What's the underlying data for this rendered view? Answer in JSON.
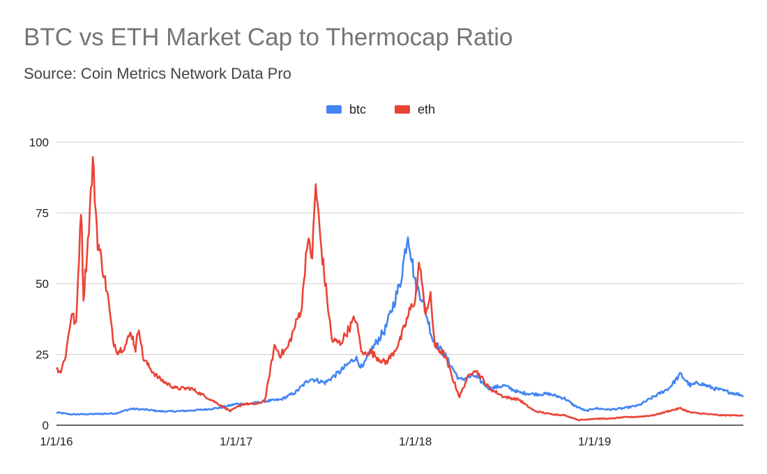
{
  "chart_data": {
    "type": "line",
    "title": "BTC vs ETH Market Cap to Thermocap Ratio",
    "subtitle": "Source: Coin Metrics Network Data Pro",
    "xlabel": "",
    "ylabel": "",
    "ylim": [
      0,
      100
    ],
    "y_ticks": [
      "0",
      "25",
      "50",
      "75",
      "100"
    ],
    "x_ticks": [
      {
        "date": "2016-01-01",
        "label": "1/1/16"
      },
      {
        "date": "2017-01-01",
        "label": "1/1/17"
      },
      {
        "date": "2018-01-01",
        "label": "1/1/18"
      },
      {
        "date": "2019-01-01",
        "label": "1/1/19"
      }
    ],
    "xlim": [
      "2016-01-01",
      "2019-10-31"
    ],
    "grid": true,
    "legend_position": "top-center",
    "series": [
      {
        "name": "btc",
        "color": "#4285F4",
        "points": [
          [
            "2016-01-01",
            4.5
          ],
          [
            "2016-02-01",
            3.8
          ],
          [
            "2016-03-01",
            3.9
          ],
          [
            "2016-04-01",
            4.0
          ],
          [
            "2016-05-01",
            4.2
          ],
          [
            "2016-06-01",
            5.8
          ],
          [
            "2016-07-01",
            5.5
          ],
          [
            "2016-08-01",
            4.9
          ],
          [
            "2016-09-01",
            4.9
          ],
          [
            "2016-10-01",
            5.2
          ],
          [
            "2016-11-01",
            5.6
          ],
          [
            "2016-12-01",
            6.2
          ],
          [
            "2017-01-01",
            7.5
          ],
          [
            "2017-02-01",
            7.6
          ],
          [
            "2017-03-01",
            8.5
          ],
          [
            "2017-04-01",
            9.0
          ],
          [
            "2017-05-01",
            11.5
          ],
          [
            "2017-06-01",
            16.5
          ],
          [
            "2017-07-01",
            15.0
          ],
          [
            "2017-08-01",
            19.0
          ],
          [
            "2017-09-01",
            24.0
          ],
          [
            "2017-09-15",
            20.0
          ],
          [
            "2017-10-01",
            26.0
          ],
          [
            "2017-11-01",
            34.0
          ],
          [
            "2017-12-01",
            50.0
          ],
          [
            "2017-12-17",
            68.0
          ],
          [
            "2018-01-01",
            50.0
          ],
          [
            "2018-01-15",
            45.0
          ],
          [
            "2018-02-06",
            30.0
          ],
          [
            "2018-03-01",
            25.0
          ],
          [
            "2018-04-01",
            16.0
          ],
          [
            "2018-05-01",
            17.5
          ],
          [
            "2018-06-01",
            13.0
          ],
          [
            "2018-07-01",
            14.0
          ],
          [
            "2018-08-01",
            11.5
          ],
          [
            "2018-09-01",
            11.0
          ],
          [
            "2018-10-01",
            11.0
          ],
          [
            "2018-11-01",
            9.5
          ],
          [
            "2018-11-20",
            7.0
          ],
          [
            "2018-12-15",
            5.0
          ],
          [
            "2019-01-01",
            6.0
          ],
          [
            "2019-02-01",
            5.5
          ],
          [
            "2019-03-01",
            6.0
          ],
          [
            "2019-04-01",
            7.0
          ],
          [
            "2019-05-01",
            10.0
          ],
          [
            "2019-06-01",
            13.0
          ],
          [
            "2019-06-25",
            18.0
          ],
          [
            "2019-07-15",
            14.0
          ],
          [
            "2019-08-01",
            15.0
          ],
          [
            "2019-09-01",
            13.0
          ],
          [
            "2019-09-25",
            12.0
          ],
          [
            "2019-10-31",
            10.5
          ]
        ]
      },
      {
        "name": "eth",
        "color": "#EA4335",
        "points": [
          [
            "2016-01-01",
            20.0
          ],
          [
            "2016-01-10",
            19.0
          ],
          [
            "2016-01-20",
            25.0
          ],
          [
            "2016-02-01",
            40.0
          ],
          [
            "2016-02-10",
            35.0
          ],
          [
            "2016-02-20",
            78.0
          ],
          [
            "2016-02-25",
            45.0
          ],
          [
            "2016-03-05",
            65.0
          ],
          [
            "2016-03-15",
            93.0
          ],
          [
            "2016-03-25",
            65.0
          ],
          [
            "2016-04-05",
            55.0
          ],
          [
            "2016-04-15",
            45.0
          ],
          [
            "2016-04-25",
            30.0
          ],
          [
            "2016-05-05",
            26.0
          ],
          [
            "2016-05-20",
            28.0
          ],
          [
            "2016-06-01",
            33.0
          ],
          [
            "2016-06-10",
            27.0
          ],
          [
            "2016-06-17",
            35.0
          ],
          [
            "2016-06-25",
            24.0
          ],
          [
            "2016-07-10",
            20.0
          ],
          [
            "2016-07-25",
            17.0
          ],
          [
            "2016-08-10",
            15.0
          ],
          [
            "2016-09-01",
            13.0
          ],
          [
            "2016-10-01",
            13.0
          ],
          [
            "2016-11-01",
            10.0
          ],
          [
            "2016-12-01",
            7.0
          ],
          [
            "2016-12-20",
            5.0
          ],
          [
            "2017-01-15",
            7.5
          ],
          [
            "2017-02-15",
            7.5
          ],
          [
            "2017-03-01",
            9.0
          ],
          [
            "2017-03-10",
            18.0
          ],
          [
            "2017-03-20",
            28.0
          ],
          [
            "2017-04-01",
            25.0
          ],
          [
            "2017-04-15",
            27.0
          ],
          [
            "2017-05-01",
            35.0
          ],
          [
            "2017-05-15",
            42.0
          ],
          [
            "2017-05-25",
            65.0
          ],
          [
            "2017-06-05",
            60.0
          ],
          [
            "2017-06-12",
            85.0
          ],
          [
            "2017-06-22",
            65.0
          ],
          [
            "2017-07-05",
            45.0
          ],
          [
            "2017-07-15",
            30.0
          ],
          [
            "2017-08-01",
            29.0
          ],
          [
            "2017-08-15",
            33.0
          ],
          [
            "2017-09-01",
            38.0
          ],
          [
            "2017-09-15",
            25.0
          ],
          [
            "2017-10-01",
            26.0
          ],
          [
            "2017-10-15",
            24.0
          ],
          [
            "2017-11-01",
            22.0
          ],
          [
            "2017-11-15",
            25.0
          ],
          [
            "2017-12-01",
            30.0
          ],
          [
            "2017-12-20",
            40.0
          ],
          [
            "2018-01-01",
            45.0
          ],
          [
            "2018-01-10",
            58.0
          ],
          [
            "2018-01-20",
            40.0
          ],
          [
            "2018-02-01",
            45.0
          ],
          [
            "2018-02-10",
            28.0
          ],
          [
            "2018-03-01",
            25.0
          ],
          [
            "2018-03-15",
            18.0
          ],
          [
            "2018-04-01",
            10.0
          ],
          [
            "2018-04-15",
            16.0
          ],
          [
            "2018-05-01",
            20.0
          ],
          [
            "2018-05-15",
            17.0
          ],
          [
            "2018-06-01",
            13.0
          ],
          [
            "2018-07-01",
            10.0
          ],
          [
            "2018-08-01",
            9.0
          ],
          [
            "2018-08-15",
            7.0
          ],
          [
            "2018-09-01",
            5.0
          ],
          [
            "2018-10-01",
            4.0
          ],
          [
            "2018-11-01",
            3.5
          ],
          [
            "2018-12-01",
            1.8
          ],
          [
            "2019-01-01",
            2.3
          ],
          [
            "2019-02-01",
            2.3
          ],
          [
            "2019-03-01",
            2.8
          ],
          [
            "2019-04-01",
            3.0
          ],
          [
            "2019-05-01",
            3.5
          ],
          [
            "2019-06-01",
            5.0
          ],
          [
            "2019-06-25",
            6.0
          ],
          [
            "2019-07-15",
            4.5
          ],
          [
            "2019-08-15",
            4.0
          ],
          [
            "2019-09-15",
            3.5
          ],
          [
            "2019-10-31",
            3.5
          ]
        ]
      }
    ]
  }
}
